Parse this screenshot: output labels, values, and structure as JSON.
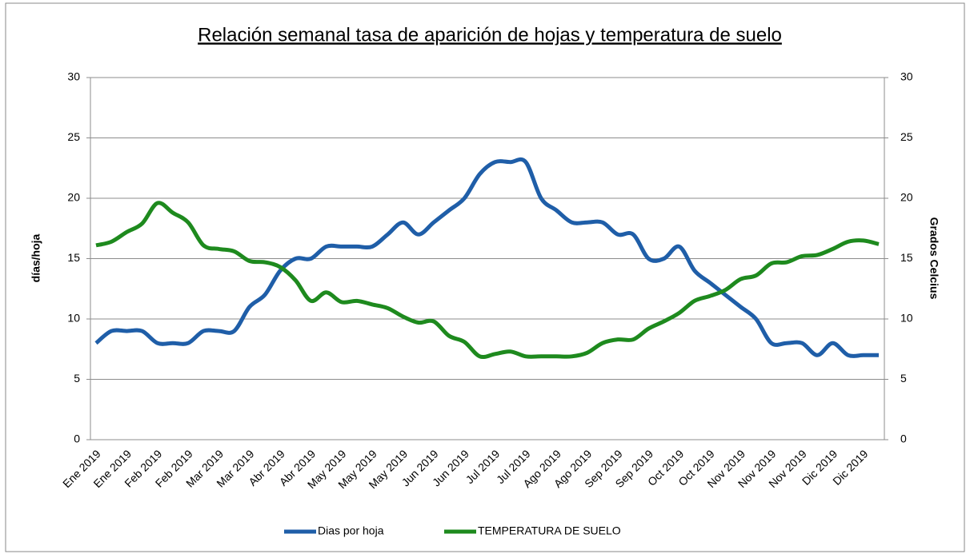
{
  "chart_data": {
    "type": "line",
    "title": "Relación semanal tasa de aparición de hojas y temperatura de suelo",
    "ylabel": "días/hoja",
    "y2label": "Grados Celcius",
    "categories": [
      "Ene 2019",
      null,
      "Ene 2019",
      null,
      "Feb 2019",
      null,
      "Feb 2019",
      null,
      "Mar 2019",
      null,
      "Mar 2019",
      null,
      "Abr 2019",
      null,
      "Abr 2019",
      null,
      "May 2019",
      null,
      "May 2019",
      null,
      "May 2019",
      null,
      "Jun 2019",
      null,
      "Jun 2019",
      null,
      "Jul 2019",
      null,
      "Jul 2019",
      null,
      "Ago 2019",
      null,
      "Ago 2019",
      null,
      "Sep 2019",
      null,
      "Sep 2019",
      null,
      "Oct 2019",
      null,
      "Oct 2019",
      null,
      "Nov 2019",
      null,
      "Nov 2019",
      null,
      "Nov 2019",
      null,
      "Dic 2019",
      null,
      "Dic 2019",
      null
    ],
    "series": [
      {
        "name": "Dias por hoja",
        "color": "#1f5ea8",
        "axis": "y",
        "values": [
          8,
          9,
          9,
          9,
          8,
          8,
          8,
          9,
          9,
          9,
          11,
          12,
          14,
          15,
          15,
          16,
          16,
          16,
          16,
          17,
          18,
          17,
          18,
          19,
          20,
          22,
          23,
          23,
          23,
          20,
          19,
          18,
          18,
          18,
          17,
          17,
          15,
          15,
          16,
          14,
          13,
          12,
          11,
          10,
          8,
          8,
          8,
          7,
          8,
          7,
          7,
          7
        ]
      },
      {
        "name": "TEMPERATURA DE SUELO",
        "color": "#1e8a1e",
        "axis": "y2",
        "values": [
          16.1,
          16.4,
          17.2,
          17.9,
          19.6,
          18.8,
          18,
          16.1,
          15.8,
          15.6,
          14.8,
          14.7,
          14.3,
          13.2,
          11.5,
          12.2,
          11.4,
          11.5,
          11.2,
          10.9,
          10.2,
          9.7,
          9.8,
          8.6,
          8.1,
          6.9,
          7.1,
          7.3,
          6.9,
          6.9,
          6.9,
          6.9,
          7.2,
          8,
          8.3,
          8.3,
          9.2,
          9.8,
          10.5,
          11.5,
          11.9,
          12.4,
          13.3,
          13.6,
          14.6,
          14.7,
          15.2,
          15.3,
          15.8,
          16.4,
          16.5,
          16.2
        ]
      }
    ],
    "ylim": [
      0,
      30
    ],
    "yticks": [
      0,
      5,
      10,
      15,
      20,
      25,
      30
    ],
    "y2lim": [
      0,
      30
    ],
    "y2ticks": [
      0,
      5,
      10,
      15,
      20,
      25,
      30
    ],
    "grid": true,
    "legend": "bottom"
  }
}
